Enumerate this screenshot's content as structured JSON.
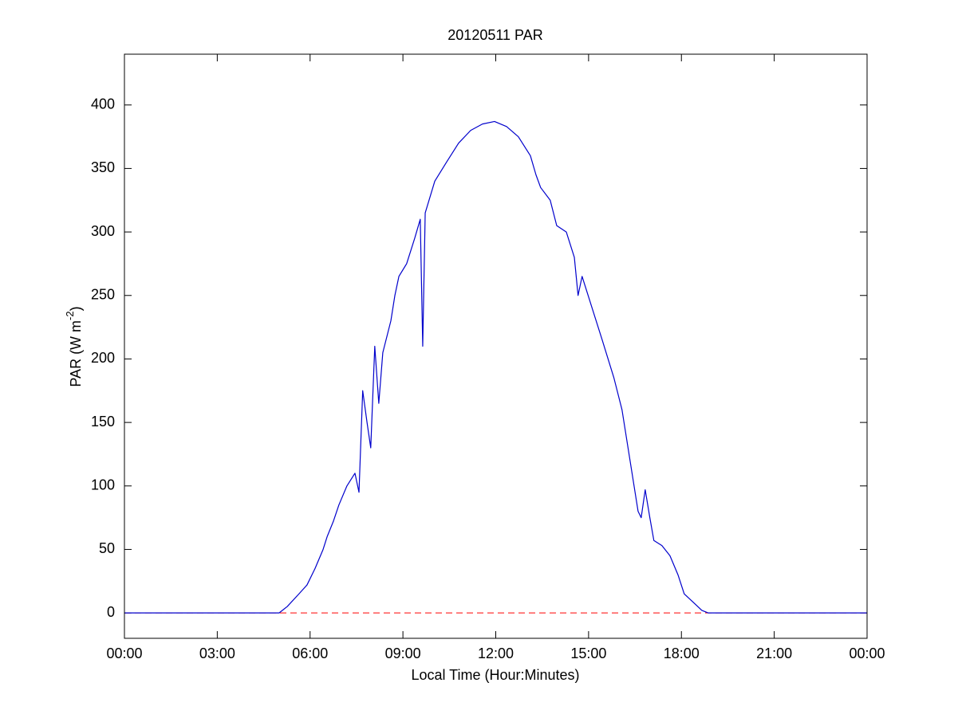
{
  "chart_data": {
    "type": "line",
    "title": "20120511 PAR",
    "x_label": "Local Time (Hour:Minutes)",
    "y_label": {
      "text": "PAR (W m",
      "superscript": "-2",
      "suffix": ")"
    },
    "xlim": [
      0,
      24
    ],
    "xticks": [
      {
        "value": 0,
        "label": "00:00"
      },
      {
        "value": 3,
        "label": "03:00"
      },
      {
        "value": 6,
        "label": "06:00"
      },
      {
        "value": 9,
        "label": "09:00"
      },
      {
        "value": 12,
        "label": "12:00"
      },
      {
        "value": 15,
        "label": "15:00"
      },
      {
        "value": 18,
        "label": "18:00"
      },
      {
        "value": 21,
        "label": "21:00"
      },
      {
        "value": 24,
        "label": "00:00"
      }
    ],
    "ylim": [
      -20,
      440
    ],
    "yticks": [
      0,
      50,
      100,
      150,
      200,
      250,
      300,
      350,
      400
    ],
    "reference_line": {
      "value": 0,
      "color": "#ff0000"
    },
    "x": [
      0,
      5.0,
      5.26,
      5.64,
      5.9,
      6.16,
      6.42,
      6.55,
      6.75,
      6.93,
      7.19,
      7.45,
      7.58,
      7.7,
      7.84,
      7.96,
      8.09,
      8.22,
      8.35,
      8.61,
      8.74,
      8.87,
      9.12,
      9.38,
      9.56,
      9.64,
      9.72,
      10.03,
      10.41,
      10.8,
      11.19,
      11.57,
      11.96,
      12.35,
      12.73,
      13.12,
      13.3,
      13.45,
      13.76,
      13.97,
      14.28,
      14.54,
      14.66,
      14.79,
      15.05,
      15.44,
      15.82,
      16.08,
      16.34,
      16.6,
      16.7,
      16.83,
      16.98,
      17.11,
      17.37,
      17.63,
      17.89,
      18.09,
      18.4,
      18.66,
      18.87,
      24
    ],
    "series": [
      {
        "name": "PAR",
        "color": "#0000cc",
        "values": [
          0,
          0,
          5,
          15,
          22,
          35,
          50,
          60,
          72,
          85,
          100,
          110,
          95,
          175,
          150,
          130,
          210,
          165,
          205,
          230,
          250,
          265,
          275,
          295,
          310,
          210,
          315,
          340,
          355,
          370,
          380,
          385,
          387,
          383,
          375,
          360,
          345,
          335,
          325,
          305,
          300,
          280,
          250,
          265,
          245,
          215,
          185,
          160,
          120,
          80,
          75,
          97,
          75,
          57,
          53,
          45,
          30,
          15,
          8,
          2,
          0,
          0
        ]
      }
    ]
  }
}
